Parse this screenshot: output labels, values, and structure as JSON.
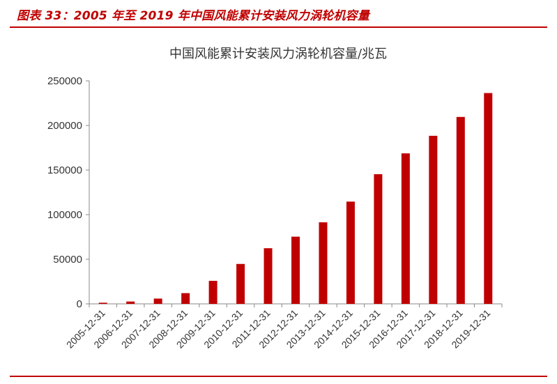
{
  "figure": {
    "caption": "图表 33：2005 年至 2019 年中国风能累计安装风力涡轮机容量"
  },
  "colors": {
    "accent": "#c00000",
    "bar": "#c00000",
    "axis": "#888888",
    "text": "#333333"
  },
  "chart_data": {
    "type": "bar",
    "title": "中国风能累计安装风力涡轮机容量/兆瓦",
    "xlabel": "",
    "ylabel": "",
    "categories": [
      "2005-12-31",
      "2006-12-31",
      "2007-12-31",
      "2008-12-31",
      "2009-12-31",
      "2010-12-31",
      "2011-12-31",
      "2012-12-31",
      "2013-12-31",
      "2014-12-31",
      "2015-12-31",
      "2016-12-31",
      "2017-12-31",
      "2018-12-31",
      "2019-12-31"
    ],
    "values": [
      1266,
      2599,
      5912,
      12020,
      25810,
      44733,
      62364,
      75324,
      91412,
      114609,
      145362,
      168690,
      188392,
      209529,
      236320
    ],
    "ylim": [
      0,
      250000
    ],
    "yticks": [
      0,
      50000,
      100000,
      150000,
      200000,
      250000
    ],
    "ytick_labels": [
      "0",
      "50000",
      "100000",
      "150000",
      "200000",
      "250000"
    ],
    "grid": false,
    "legend": "none"
  }
}
